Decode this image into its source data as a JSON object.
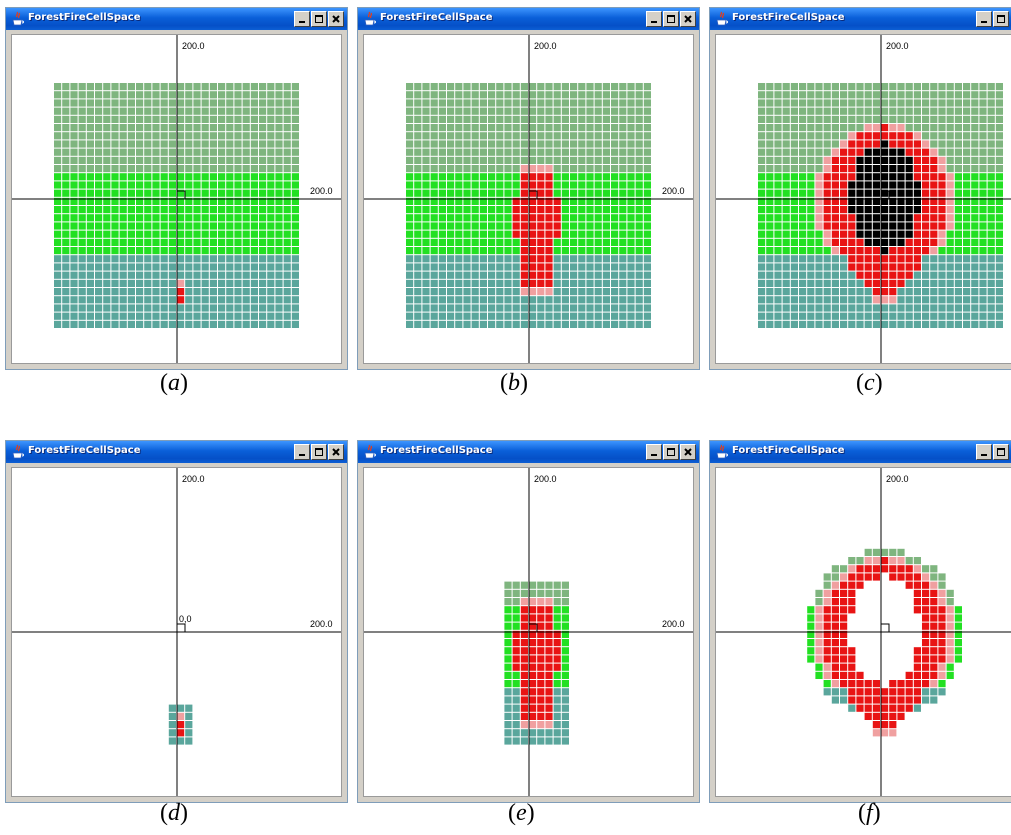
{
  "window_title": "ForestFireCellSpace",
  "axis_label_y": "200.0",
  "axis_label_x": "200.0",
  "origin_label": "0,0",
  "colors": {
    "title_bar": "#0a5fd8",
    "unburned_top": "#7fb57f",
    "unburned_middle": "#22e022",
    "unburned_bottom": "#5aa69c",
    "burning": "#e81414",
    "burning_edge": "#f0a0a0",
    "burned": "#000000",
    "grid_line": "#ffffff"
  },
  "captions": [
    "a",
    "b",
    "c",
    "d",
    "e",
    "f"
  ],
  "panels": [
    {
      "id": "a",
      "caption": "a",
      "show_origin_label": false
    },
    {
      "id": "b",
      "caption": "b",
      "show_origin_label": false
    },
    {
      "id": "c",
      "caption": "c",
      "show_origin_label": false
    },
    {
      "id": "d",
      "caption": "d",
      "show_origin_label": true
    },
    {
      "id": "e",
      "caption": "e",
      "show_origin_label": false
    },
    {
      "id": "f",
      "caption": "f",
      "show_origin_label": false
    }
  ]
}
